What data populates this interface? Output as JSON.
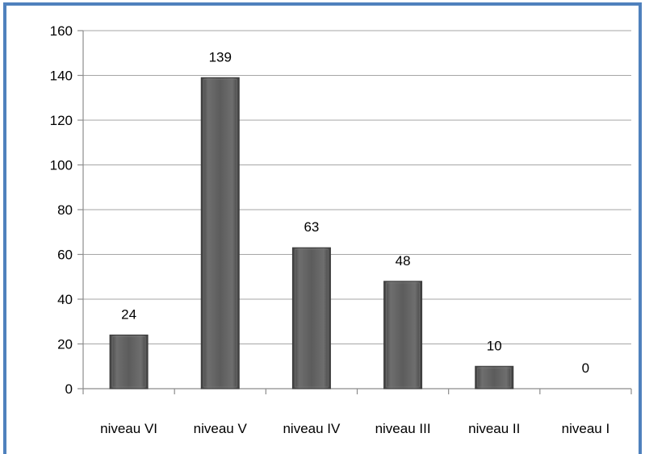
{
  "chart_data": {
    "type": "bar",
    "title": "",
    "xlabel": "",
    "ylabel": "",
    "categories": [
      "niveau VI",
      "niveau V",
      "niveau IV",
      "niveau III",
      "niveau II",
      "niveau I"
    ],
    "values": [
      24,
      139,
      63,
      48,
      10,
      0
    ],
    "data_labels": [
      "24",
      "139",
      "63",
      "48",
      "10",
      "0"
    ],
    "ylim": [
      0,
      160
    ],
    "yticks": [
      "0",
      "20",
      "40",
      "60",
      "80",
      "100",
      "120",
      "140",
      "160"
    ],
    "grid": true,
    "legend": "none",
    "colors": {
      "border": "#4f81bd",
      "bar_fill": "#5a5a5a",
      "bar_edge": "#3a3a3a",
      "bar_highlight": "#7a7a7a",
      "grid": "#a6a6a6"
    }
  }
}
